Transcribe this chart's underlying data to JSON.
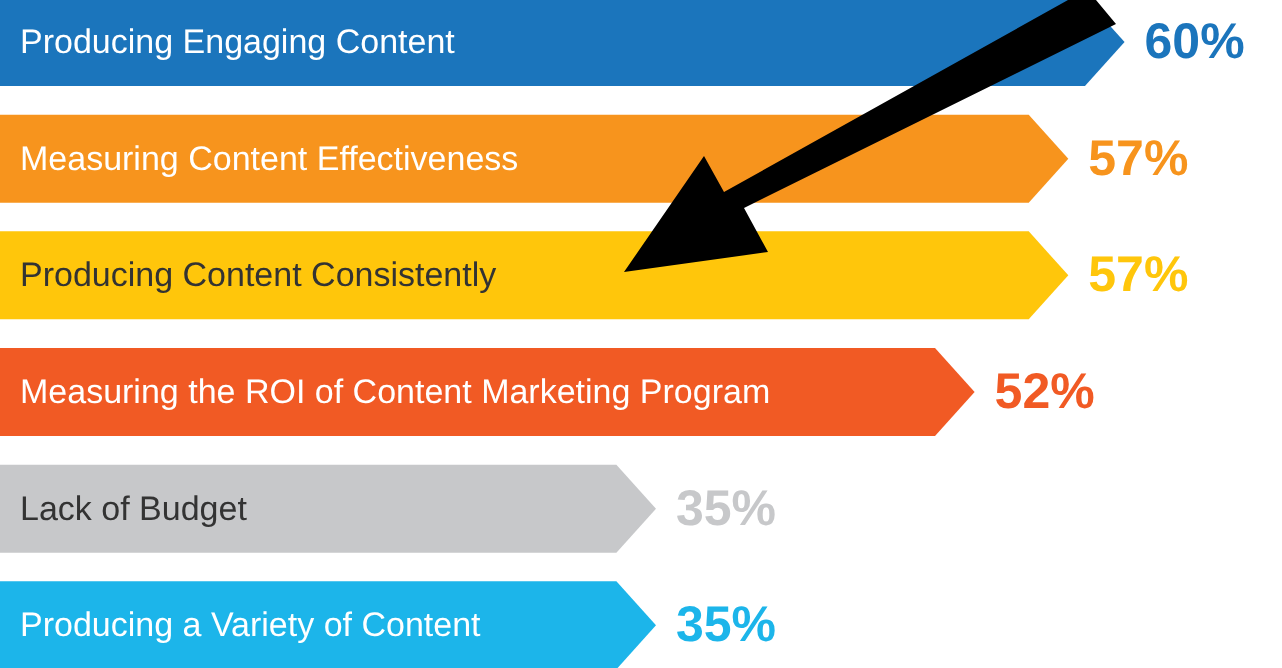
{
  "chart_data": {
    "type": "bar",
    "orientation": "horizontal",
    "categories": [
      "Producing Engaging Content",
      "Measuring Content Effectiveness",
      "Producing Content Consistently",
      "Measuring the ROI of Content Marketing Program",
      "Lack of Budget",
      "Producing a Variety of Content"
    ],
    "values": [
      60,
      57,
      57,
      52,
      35,
      35
    ],
    "colors": [
      "#1b75bc",
      "#f7941d",
      "#ffc60b",
      "#f15a24",
      "#c7c8ca",
      "#1cb5ea"
    ],
    "value_labels": [
      "60%",
      "57%",
      "57%",
      "52%",
      "35%",
      "35%"
    ]
  }
}
